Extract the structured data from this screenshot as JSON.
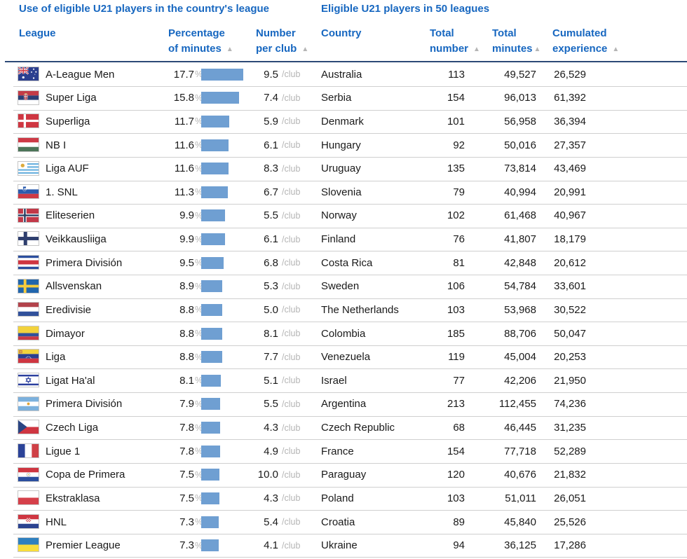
{
  "left_table": {
    "title": "Use of eligible U21 players in the country's league",
    "columns": {
      "league": "League",
      "percentage": [
        "Percentage",
        "of minutes"
      ],
      "per_club": [
        "Number",
        "per club"
      ]
    },
    "units": {
      "percent": "%",
      "per_club": "/club"
    },
    "rows": [
      {
        "flag": "australia",
        "league": "A-League Men",
        "percentage": "17.7",
        "per_club": "9.5"
      },
      {
        "flag": "serbia",
        "league": "Super Liga",
        "percentage": "15.8",
        "per_club": "7.4"
      },
      {
        "flag": "denmark",
        "league": "Superliga",
        "percentage": "11.7",
        "per_club": "5.9"
      },
      {
        "flag": "hungary",
        "league": "NB I",
        "percentage": "11.6",
        "per_club": "6.1"
      },
      {
        "flag": "uruguay",
        "league": "Liga AUF",
        "percentage": "11.6",
        "per_club": "8.3"
      },
      {
        "flag": "slovenia",
        "league": "1. SNL",
        "percentage": "11.3",
        "per_club": "6.7"
      },
      {
        "flag": "norway",
        "league": "Eliteserien",
        "percentage": "9.9",
        "per_club": "5.5"
      },
      {
        "flag": "finland",
        "league": "Veikkausliiga",
        "percentage": "9.9",
        "per_club": "6.1"
      },
      {
        "flag": "costa_rica",
        "league": "Primera División",
        "percentage": "9.5",
        "per_club": "6.8"
      },
      {
        "flag": "sweden",
        "league": "Allsvenskan",
        "percentage": "8.9",
        "per_club": "5.3"
      },
      {
        "flag": "netherlands",
        "league": "Eredivisie",
        "percentage": "8.8",
        "per_club": "5.0"
      },
      {
        "flag": "colombia",
        "league": "Dimayor",
        "percentage": "8.8",
        "per_club": "8.1"
      },
      {
        "flag": "venezuela",
        "league": "Liga",
        "percentage": "8.8",
        "per_club": "7.7"
      },
      {
        "flag": "israel",
        "league": "Ligat Ha'al",
        "percentage": "8.1",
        "per_club": "5.1"
      },
      {
        "flag": "argentina",
        "league": "Primera División",
        "percentage": "7.9",
        "per_club": "5.5"
      },
      {
        "flag": "czech_republic",
        "league": "Czech Liga",
        "percentage": "7.8",
        "per_club": "4.3"
      },
      {
        "flag": "france",
        "league": "Ligue 1",
        "percentage": "7.8",
        "per_club": "4.9"
      },
      {
        "flag": "paraguay",
        "league": "Copa de Primera",
        "percentage": "7.5",
        "per_club": "10.0"
      },
      {
        "flag": "poland",
        "league": "Ekstraklasa",
        "percentage": "7.5",
        "per_club": "4.3"
      },
      {
        "flag": "croatia",
        "league": "HNL",
        "percentage": "7.3",
        "per_club": "5.4"
      },
      {
        "flag": "ukraine",
        "league": "Premier League",
        "percentage": "7.3",
        "per_club": "4.1"
      }
    ]
  },
  "right_table": {
    "title": "Eligible U21 players in 50 leagues",
    "columns": {
      "country": "Country",
      "total_number": [
        "Total",
        "number"
      ],
      "total_minutes": [
        "Total",
        "minutes"
      ],
      "cumulated_experience": [
        "Cumulated",
        "experience"
      ]
    },
    "rows": [
      {
        "country": "Australia",
        "total_number": "113",
        "total_minutes": "49,527",
        "cumulated_experience": "26,529"
      },
      {
        "country": "Serbia",
        "total_number": "154",
        "total_minutes": "96,013",
        "cumulated_experience": "61,392"
      },
      {
        "country": "Denmark",
        "total_number": "101",
        "total_minutes": "56,958",
        "cumulated_experience": "36,394"
      },
      {
        "country": "Hungary",
        "total_number": "92",
        "total_minutes": "50,016",
        "cumulated_experience": "27,357"
      },
      {
        "country": "Uruguay",
        "total_number": "135",
        "total_minutes": "73,814",
        "cumulated_experience": "43,469"
      },
      {
        "country": "Slovenia",
        "total_number": "79",
        "total_minutes": "40,994",
        "cumulated_experience": "20,991"
      },
      {
        "country": "Norway",
        "total_number": "102",
        "total_minutes": "61,468",
        "cumulated_experience": "40,967"
      },
      {
        "country": "Finland",
        "total_number": "76",
        "total_minutes": "41,807",
        "cumulated_experience": "18,179"
      },
      {
        "country": "Costa Rica",
        "total_number": "81",
        "total_minutes": "42,848",
        "cumulated_experience": "20,612"
      },
      {
        "country": "Sweden",
        "total_number": "106",
        "total_minutes": "54,784",
        "cumulated_experience": "33,601"
      },
      {
        "country": "The Netherlands",
        "total_number": "103",
        "total_minutes": "53,968",
        "cumulated_experience": "30,522"
      },
      {
        "country": "Colombia",
        "total_number": "185",
        "total_minutes": "88,706",
        "cumulated_experience": "50,047"
      },
      {
        "country": "Venezuela",
        "total_number": "119",
        "total_minutes": "45,004",
        "cumulated_experience": "20,253"
      },
      {
        "country": "Israel",
        "total_number": "77",
        "total_minutes": "42,206",
        "cumulated_experience": "21,950"
      },
      {
        "country": "Argentina",
        "total_number": "213",
        "total_minutes": "112,455",
        "cumulated_experience": "74,236"
      },
      {
        "country": "Czech Republic",
        "total_number": "68",
        "total_minutes": "46,445",
        "cumulated_experience": "31,235"
      },
      {
        "country": "France",
        "total_number": "154",
        "total_minutes": "77,718",
        "cumulated_experience": "52,289"
      },
      {
        "country": "Paraguay",
        "total_number": "120",
        "total_minutes": "40,676",
        "cumulated_experience": "21,832"
      },
      {
        "country": "Poland",
        "total_number": "103",
        "total_minutes": "51,011",
        "cumulated_experience": "26,051"
      },
      {
        "country": "Croatia",
        "total_number": "89",
        "total_minutes": "45,840",
        "cumulated_experience": "25,526"
      },
      {
        "country": "Ukraine",
        "total_number": "94",
        "total_minutes": "36,125",
        "cumulated_experience": "17,286"
      }
    ]
  },
  "icons": {
    "sort_ascending": "▲"
  },
  "colors": {
    "accent_blue": "#1767c0",
    "bar_blue": "#6f9fd2",
    "header_rule": "#2d4a77",
    "row_rule": "#cfcfcf",
    "muted_gray": "#b5b5b5"
  }
}
